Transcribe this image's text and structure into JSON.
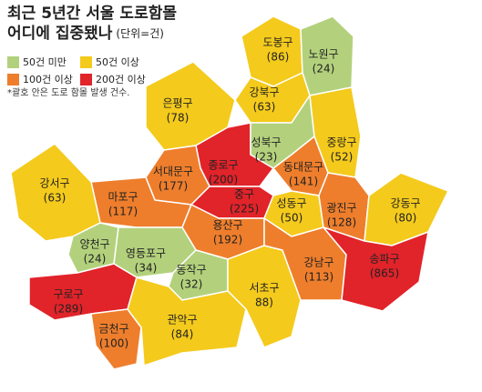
{
  "header": {
    "title_line_1": "최근 5년간 서울 도로함몰",
    "title_line_2": "어디에 집중됐나",
    "unit": "(단위=건)",
    "note": "*괄호 안은 도로 함몰 발생 건수."
  },
  "legend": [
    {
      "label": "50건 미만",
      "color": "#b3d17c"
    },
    {
      "label": "50건 이상",
      "color": "#f4ca1c"
    },
    {
      "label": "100건 이상",
      "color": "#ee7e2c"
    },
    {
      "label": "200건 이상",
      "color": "#e1232a"
    }
  ],
  "districts": [
    {
      "name": "도봉구",
      "value": 86,
      "value_label": "(86)",
      "color": "#f4ca1c"
    },
    {
      "name": "노원구",
      "value": 24,
      "value_label": "(24)",
      "color": "#b3d17c"
    },
    {
      "name": "강북구",
      "value": 63,
      "value_label": "(63)",
      "color": "#f4ca1c"
    },
    {
      "name": "은평구",
      "value": 78,
      "value_label": "(78)",
      "color": "#f4ca1c"
    },
    {
      "name": "종로구",
      "value": 200,
      "value_label": "(200)",
      "color": "#e1232a"
    },
    {
      "name": "성북구",
      "value": 23,
      "value_label": "(23)",
      "color": "#b3d17c"
    },
    {
      "name": "중랑구",
      "value": 52,
      "value_label": "(52)",
      "color": "#f4ca1c"
    },
    {
      "name": "동대문구",
      "value": 141,
      "value_label": "(141)",
      "color": "#ee7e2c"
    },
    {
      "name": "서대문구",
      "value": 177,
      "value_label": "(177)",
      "color": "#ee7e2c"
    },
    {
      "name": "마포구",
      "value": 117,
      "value_label": "(117)",
      "color": "#ee7e2c"
    },
    {
      "name": "중구",
      "value": 225,
      "value_label": "(225)",
      "color": "#e1232a"
    },
    {
      "name": "성동구",
      "value": 50,
      "value_label": "(50)",
      "color": "#f4ca1c"
    },
    {
      "name": "광진구",
      "value": 128,
      "value_label": "(128)",
      "color": "#ee7e2c"
    },
    {
      "name": "강동구",
      "value": 80,
      "value_label": "(80)",
      "color": "#f4ca1c"
    },
    {
      "name": "용산구",
      "value": 192,
      "value_label": "(192)",
      "color": "#ee7e2c"
    },
    {
      "name": "강서구",
      "value": 63,
      "value_label": "(63)",
      "color": "#f4ca1c"
    },
    {
      "name": "양천구",
      "value": 24,
      "value_label": "(24)",
      "color": "#b3d17c"
    },
    {
      "name": "영등포구",
      "value": 34,
      "value_label": "(34)",
      "color": "#b3d17c"
    },
    {
      "name": "동작구",
      "value": 32,
      "value_label": "(32)",
      "color": "#b3d17c"
    },
    {
      "name": "서초구",
      "value": 88,
      "value_label": "88)",
      "color": "#f4ca1c"
    },
    {
      "name": "강남구",
      "value": 113,
      "value_label": "(113)",
      "color": "#ee7e2c"
    },
    {
      "name": "송파구",
      "value": 865,
      "value_label": "(865)",
      "color": "#e1232a"
    },
    {
      "name": "구로구",
      "value": 289,
      "value_label": "(289)",
      "color": "#e1232a"
    },
    {
      "name": "금천구",
      "value": 100,
      "value_label": "(100)",
      "color": "#ee7e2c"
    },
    {
      "name": "관악구",
      "value": 84,
      "value_label": "(84)",
      "color": "#f4ca1c"
    }
  ]
}
